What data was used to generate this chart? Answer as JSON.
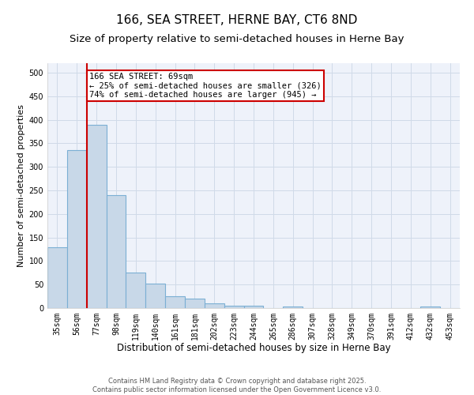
{
  "title1": "166, SEA STREET, HERNE BAY, CT6 8ND",
  "title2": "Size of property relative to semi-detached houses in Herne Bay",
  "xlabel": "Distribution of semi-detached houses by size in Herne Bay",
  "ylabel": "Number of semi-detached properties",
  "categories": [
    "35sqm",
    "56sqm",
    "77sqm",
    "98sqm",
    "119sqm",
    "140sqm",
    "161sqm",
    "181sqm",
    "202sqm",
    "223sqm",
    "244sqm",
    "265sqm",
    "286sqm",
    "307sqm",
    "328sqm",
    "349sqm",
    "370sqm",
    "391sqm",
    "412sqm",
    "432sqm",
    "453sqm"
  ],
  "values": [
    130,
    335,
    390,
    240,
    75,
    52,
    25,
    20,
    10,
    5,
    5,
    0,
    4,
    0,
    0,
    0,
    0,
    0,
    0,
    3,
    0
  ],
  "bar_color": "#c8d8e8",
  "bar_edge_color": "#7bafd4",
  "property_line_x": 1.5,
  "property_label": "166 SEA STREET: 69sqm",
  "pct_smaller": "25% of semi-detached houses are smaller (326)",
  "pct_larger": "74% of semi-detached houses are larger (945)",
  "annotation_box_edge": "#cc0000",
  "line_color": "#cc0000",
  "grid_color": "#d0dae8",
  "background_color": "#eef2fa",
  "footnote1": "Contains HM Land Registry data © Crown copyright and database right 2025.",
  "footnote2": "Contains public sector information licensed under the Open Government Licence v3.0.",
  "ylim": [
    0,
    520
  ],
  "yticks": [
    0,
    50,
    100,
    150,
    200,
    250,
    300,
    350,
    400,
    450,
    500
  ],
  "title1_fontsize": 11,
  "title2_fontsize": 9.5,
  "xlabel_fontsize": 8.5,
  "ylabel_fontsize": 8,
  "tick_fontsize": 7,
  "annotation_fontsize": 7.5,
  "footnote_fontsize": 6
}
